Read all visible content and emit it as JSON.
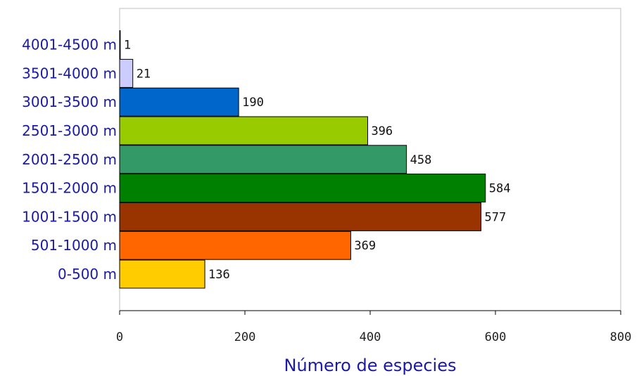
{
  "chart_data": {
    "type": "bar",
    "orientation": "horizontal",
    "categories": [
      "0-500 m",
      "501-1000 m",
      "1001-1500 m",
      "1501-2000 m",
      "2001-2500 m",
      "2501-3000 m",
      "3001-3500 m",
      "3501-4000 m",
      "4001-4500 m"
    ],
    "values": [
      136,
      369,
      577,
      584,
      458,
      396,
      190,
      21,
      1
    ],
    "colors": [
      "#ffcc00",
      "#ff6600",
      "#993300",
      "#008000",
      "#339966",
      "#99cc00",
      "#0066cc",
      "#ccccff",
      "#ffffff"
    ],
    "xlabel": "Número de especies",
    "ylabel": "",
    "xlim": [
      0,
      800
    ],
    "xticks": [
      "0",
      "200",
      "400",
      "600",
      "800"
    ],
    "grid": false,
    "legend": "none"
  }
}
